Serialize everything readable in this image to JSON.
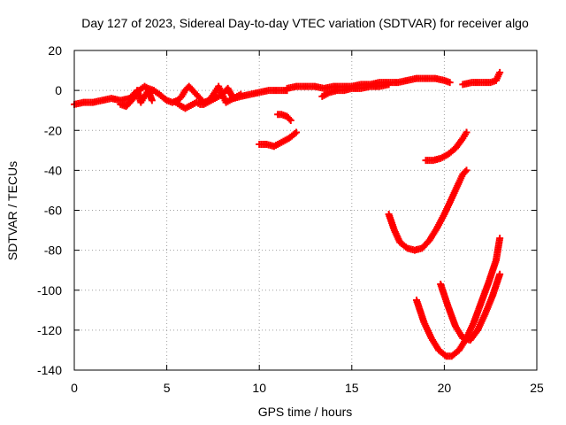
{
  "chart_data": {
    "type": "scatter",
    "title": "Day 127 of 2023, Sidereal Day-to-day VTEC variation (SDTVAR) for receiver algo",
    "xlabel": "GPS time / hours",
    "ylabel": "SDTVAR / TECUs",
    "xlim": [
      0,
      25
    ],
    "ylim": [
      -140,
      20
    ],
    "xticks": [
      0,
      5,
      10,
      15,
      20,
      25
    ],
    "yticks": [
      -140,
      -120,
      -100,
      -80,
      -60,
      -40,
      -20,
      0,
      20
    ],
    "grid": true,
    "marker": "plus",
    "color": "#ff0000",
    "series": [
      {
        "x": [
          0,
          0.5,
          1,
          1.5,
          2,
          2.5,
          3,
          3.2,
          3.5,
          3.8,
          4,
          4.3,
          4.6,
          5,
          5.3,
          5.6,
          5.8,
          6,
          6.2,
          6.5,
          7,
          7.3,
          7.6,
          7.8,
          8,
          8.3,
          8.6,
          9,
          9.5,
          10,
          10.5,
          11,
          11.5
        ],
        "y": [
          -7,
          -6,
          -6,
          -5,
          -4,
          -5,
          -4,
          -2,
          0,
          2,
          1,
          0,
          -2,
          -5,
          -6,
          -5,
          -3,
          0,
          2,
          -1,
          -6,
          -5,
          -1,
          2,
          -2,
          1,
          -4,
          -3,
          -2,
          -1,
          0,
          0,
          0
        ]
      },
      {
        "x": [
          2.5,
          2.8,
          3,
          3.2,
          3.4,
          3.6,
          3.8,
          4,
          4.2
        ],
        "y": [
          -7,
          -8,
          -6,
          -4,
          0,
          -6,
          -3,
          0,
          -5
        ]
      },
      {
        "x": [
          5.5,
          5.8,
          6,
          6.2,
          6.4,
          6.6,
          6.8,
          7,
          7.2,
          7.4,
          7.6,
          7.8,
          8,
          8.2,
          8.4,
          8.6,
          8.8,
          9
        ],
        "y": [
          -6,
          -8,
          -9,
          -8,
          -7,
          -6,
          -7,
          -7,
          -6,
          -5,
          -4,
          -3,
          -2,
          -6,
          -5,
          -4,
          -3,
          -2
        ]
      },
      {
        "x": [
          11.5,
          12,
          12.5,
          13,
          13.5,
          14,
          14.5,
          15,
          15.5,
          16,
          16.5,
          17,
          17.5,
          18,
          18.5,
          19,
          19.5,
          20,
          20.3
        ],
        "y": [
          1,
          2,
          2,
          2,
          1,
          2,
          2,
          2,
          3,
          3,
          4,
          4,
          4,
          5,
          6,
          6,
          6,
          5,
          4
        ]
      },
      {
        "x": [
          13.4,
          13.8,
          14.2,
          14.6,
          15,
          15.5,
          16,
          16.5,
          17
        ],
        "y": [
          -3,
          -1,
          0,
          0,
          1,
          1,
          2,
          2,
          3
        ]
      },
      {
        "x": [
          21,
          21.5,
          22,
          22.5,
          22.8,
          23
        ],
        "y": [
          3,
          4,
          4,
          4,
          5,
          9
        ]
      },
      {
        "x": [
          11.0,
          11.2,
          11.5,
          11.7
        ],
        "y": [
          -12,
          -12,
          -13,
          -15
        ]
      },
      {
        "x": [
          10.0,
          10.4,
          10.8,
          11.2,
          11.6,
          12.0
        ],
        "y": [
          -27,
          -27,
          -28,
          -26,
          -24,
          -21
        ]
      },
      {
        "x": [
          17.0,
          17.3,
          17.6,
          18.0,
          18.4,
          18.8,
          19.2,
          19.6,
          20.0,
          20.4,
          20.8,
          21.0,
          21.2
        ],
        "y": [
          -62,
          -70,
          -76,
          -79,
          -80,
          -79,
          -75,
          -69,
          -62,
          -54,
          -46,
          -42,
          -40
        ]
      },
      {
        "x": [
          19.0,
          19.4,
          19.8,
          20.2,
          20.6,
          21.0,
          21.2
        ],
        "y": [
          -35,
          -35,
          -34,
          -32,
          -29,
          -24,
          -21
        ]
      },
      {
        "x": [
          18.5,
          18.9,
          19.3,
          19.7,
          20.1,
          20.4,
          20.8,
          21.2,
          21.6,
          22.0,
          22.4,
          22.8,
          23.0
        ],
        "y": [
          -105,
          -116,
          -124,
          -130,
          -133,
          -133,
          -130,
          -124,
          -116,
          -106,
          -96,
          -85,
          -74
        ]
      },
      {
        "x": [
          19.8,
          20.2,
          20.6,
          21.0,
          21.4,
          21.8,
          22.2,
          22.6,
          23.0
        ],
        "y": [
          -97,
          -108,
          -118,
          -124,
          -125,
          -120,
          -112,
          -103,
          -92
        ]
      }
    ]
  }
}
